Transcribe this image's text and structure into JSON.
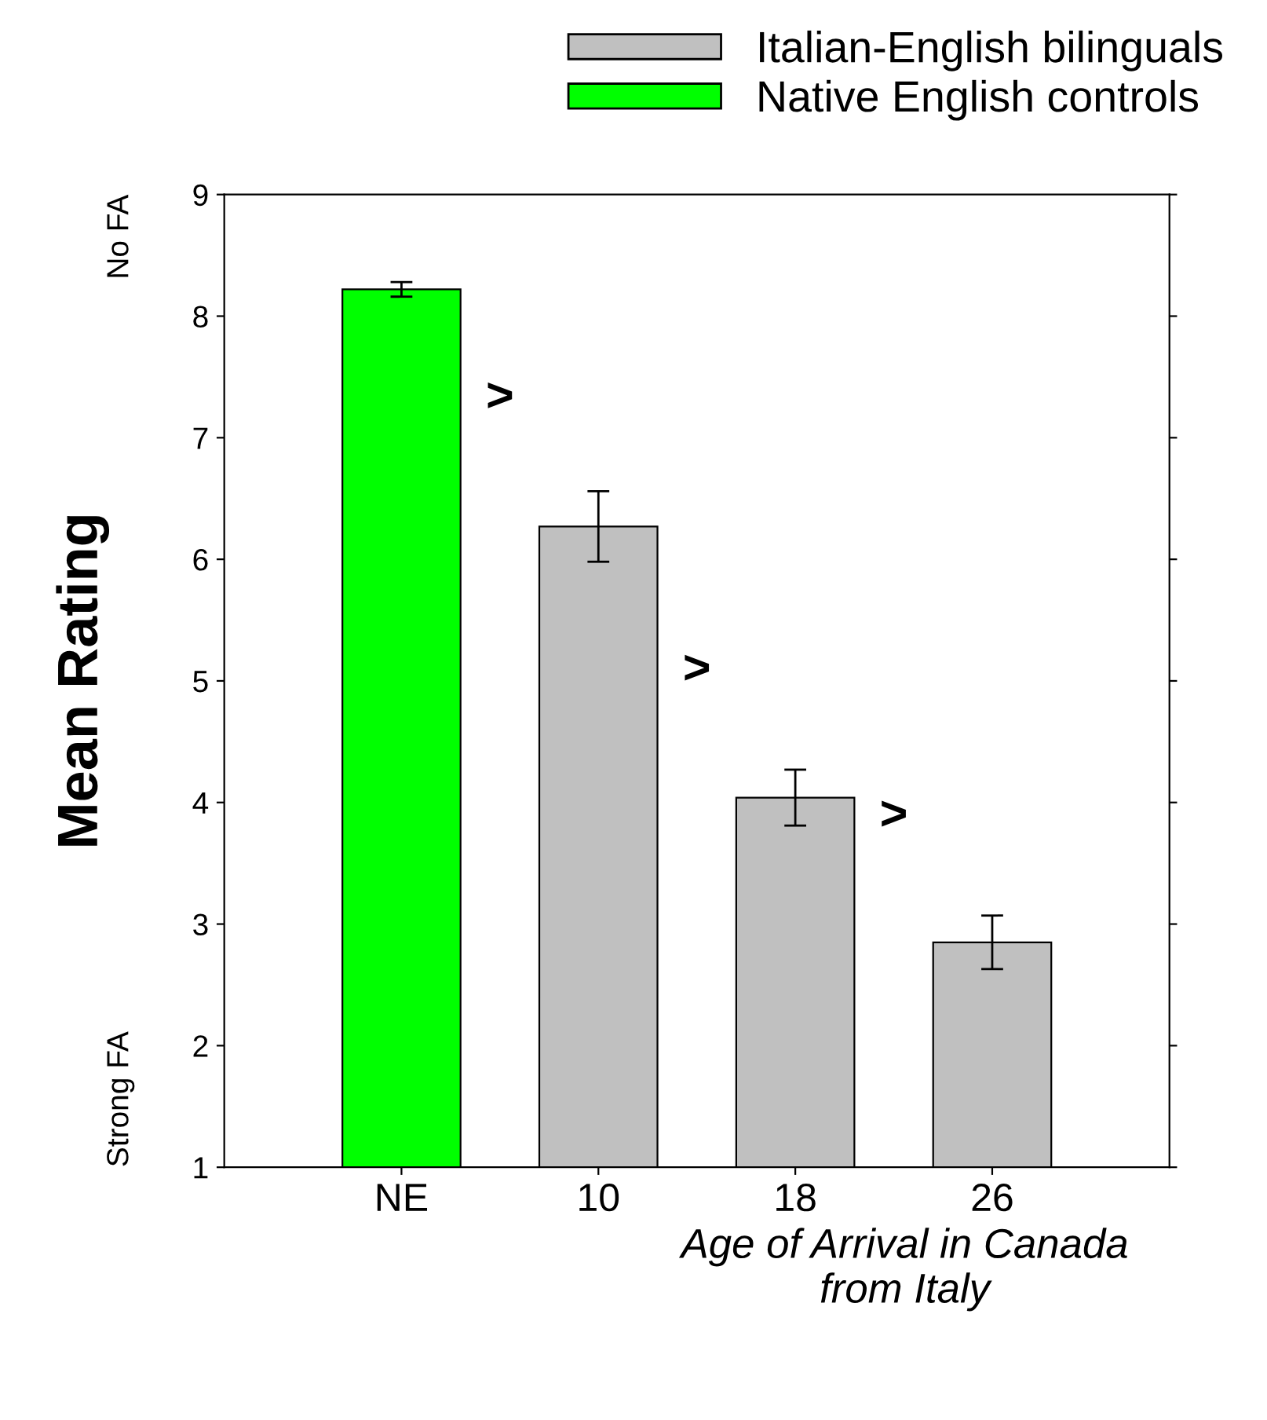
{
  "chart_data": {
    "type": "bar",
    "categories": [
      "NE",
      "10",
      "18",
      "26"
    ],
    "series": [
      {
        "name": "Italian-English bilinguals",
        "color": "#c0c0c0",
        "values": [
          null,
          6.27,
          4.04,
          2.85
        ],
        "errors": [
          null,
          0.29,
          0.23,
          0.22
        ]
      },
      {
        "name": "Native English controls",
        "color": "#00ff00",
        "values": [
          8.22,
          null,
          null,
          null
        ],
        "errors": [
          0.06,
          null,
          null,
          null
        ]
      }
    ],
    "ylim": [
      1,
      9
    ],
    "yticks": [
      1,
      2,
      3,
      4,
      5,
      6,
      7,
      8,
      9
    ],
    "ylabel": "Mean Rating",
    "xlabel": "Age of Arrival in Canada\nfrom Italy",
    "annotations": [
      "No FA",
      "Strong FA",
      ">",
      ">",
      ">"
    ],
    "legend": "top",
    "grid": false
  }
}
